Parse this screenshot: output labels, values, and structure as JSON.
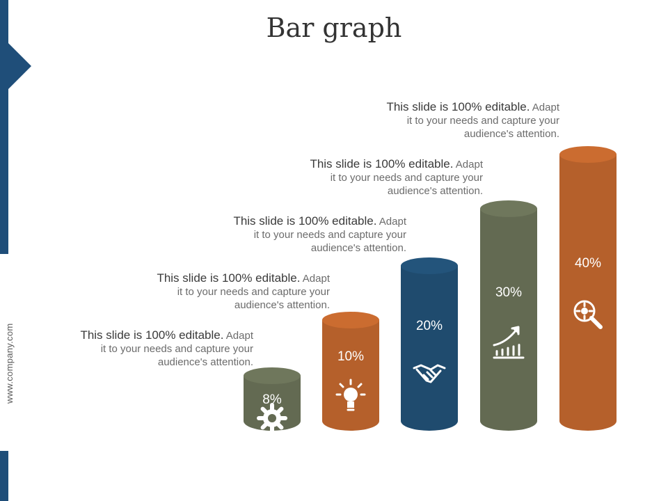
{
  "slide": {
    "title": "Bar graph",
    "website": "www.company.com"
  },
  "colors": {
    "accent_navy": "#1f4e79",
    "olive": "#636a52",
    "orange": "#b5602b",
    "navy": "#1f4b6e"
  },
  "chart_data": {
    "type": "bar",
    "style": "cylinder",
    "categories": [
      "",
      "",
      "",
      "",
      ""
    ],
    "values": [
      8,
      10,
      20,
      30,
      40
    ],
    "data_labels": [
      "8%",
      "10%",
      "20%",
      "30%",
      "40%"
    ],
    "bar_colors": [
      "#636a52",
      "#b5602b",
      "#1f4b6e",
      "#636a52",
      "#b5602b"
    ],
    "bar_icons": [
      "gear-icon",
      "lightbulb-icon",
      "handshake-icon",
      "growth-chart-icon",
      "magnifier-icon"
    ],
    "title": "Bar graph",
    "xlabel": "",
    "ylabel": "",
    "grid": false,
    "legend": "none"
  },
  "callouts": [
    {
      "lead": "This slide is 100% editable.",
      "rest_1": " Adapt",
      "line2": "it to your needs and capture your",
      "line3": "audience's attention."
    },
    {
      "lead": "This slide is 100% editable.",
      "rest_1": " Adapt",
      "line2": "it to your needs and capture your",
      "line3": "audience's attention."
    },
    {
      "lead": "This slide is 100% editable.",
      "rest_1": " Adapt",
      "line2": "it to your needs and capture your",
      "line3": "audience's attention."
    },
    {
      "lead": "This slide is 100% editable.",
      "rest_1": " Adapt",
      "line2": "it to your needs and capture your",
      "line3": "audience's attention."
    },
    {
      "lead": "This slide is 100% editable.",
      "rest_1": " Adapt",
      "line2": "it to your needs and capture your",
      "line3": "audience's attention."
    }
  ]
}
